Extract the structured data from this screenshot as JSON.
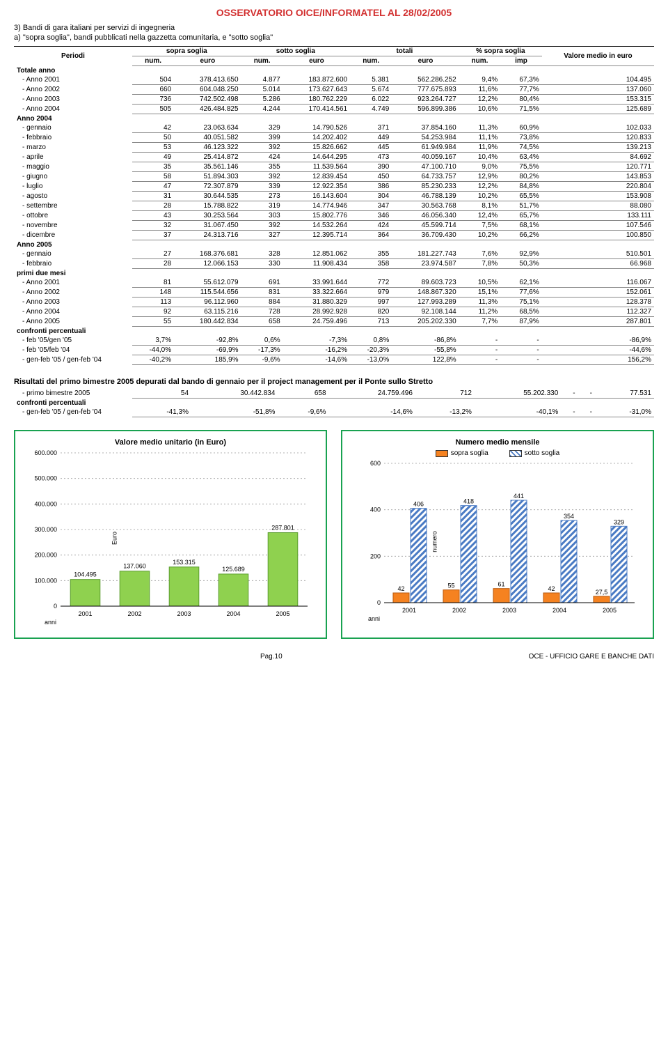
{
  "header": {
    "title": "OSSERVATORIO OICE/INFORMATEL AL 28/02/2005",
    "section": "3) Bandi di gara italiani per servizi di ingegneria",
    "subsection": "a)  \"sopra soglia\", bandi pubblicati nella gazzetta comunitaria, e  \"sotto soglia\""
  },
  "table": {
    "periodi_label": "Periodi",
    "group_headers": [
      "sopra soglia",
      "sotto soglia",
      "totali",
      "% sopra soglia"
    ],
    "valore_label": "Valore medio in euro",
    "sub_headers": [
      "num.",
      "euro",
      "num.",
      "euro",
      "num.",
      "euro",
      "num.",
      "imp"
    ],
    "sections": [
      {
        "title": "Totale anno",
        "rows": [
          {
            "label": " - Anno 2001",
            "c": [
              "504",
              "378.413.650",
              "4.877",
              "183.872.600",
              "5.381",
              "562.286.252",
              "9,4%",
              "67,3%",
              "104.495"
            ]
          },
          {
            "label": " - Anno 2002",
            "c": [
              "660",
              "604.048.250",
              "5.014",
              "173.627.643",
              "5.674",
              "777.675.893",
              "11,6%",
              "77,7%",
              "137.060"
            ]
          },
          {
            "label": " - Anno 2003",
            "c": [
              "736",
              "742.502.498",
              "5.286",
              "180.762.229",
              "6.022",
              "923.264.727",
              "12,2%",
              "80,4%",
              "153.315"
            ]
          },
          {
            "label": " - Anno 2004",
            "c": [
              "505",
              "426.484.825",
              "4.244",
              "170.414.561",
              "4.749",
              "596.899.386",
              "10,6%",
              "71,5%",
              "125.689"
            ]
          }
        ]
      },
      {
        "title": "Anno 2004",
        "rows": [
          {
            "label": " - gennaio",
            "c": [
              "42",
              "23.063.634",
              "329",
              "14.790.526",
              "371",
              "37.854.160",
              "11,3%",
              "60,9%",
              "102.033"
            ]
          },
          {
            "label": " - febbraio",
            "c": [
              "50",
              "40.051.582",
              "399",
              "14.202.402",
              "449",
              "54.253.984",
              "11,1%",
              "73,8%",
              "120.833"
            ]
          },
          {
            "label": " - marzo",
            "c": [
              "53",
              "46.123.322",
              "392",
              "15.826.662",
              "445",
              "61.949.984",
              "11,9%",
              "74,5%",
              "139.213"
            ]
          },
          {
            "label": " - aprile",
            "c": [
              "49",
              "25.414.872",
              "424",
              "14.644.295",
              "473",
              "40.059.167",
              "10,4%",
              "63,4%",
              "84.692"
            ]
          },
          {
            "label": " - maggio",
            "c": [
              "35",
              "35.561.146",
              "355",
              "11.539.564",
              "390",
              "47.100.710",
              "9,0%",
              "75,5%",
              "120.771"
            ]
          },
          {
            "label": " - giugno",
            "c": [
              "58",
              "51.894.303",
              "392",
              "12.839.454",
              "450",
              "64.733.757",
              "12,9%",
              "80,2%",
              "143.853"
            ]
          },
          {
            "label": " - luglio",
            "c": [
              "47",
              "72.307.879",
              "339",
              "12.922.354",
              "386",
              "85.230.233",
              "12,2%",
              "84,8%",
              "220.804"
            ]
          },
          {
            "label": " - agosto",
            "c": [
              "31",
              "30.644.535",
              "273",
              "16.143.604",
              "304",
              "46.788.139",
              "10,2%",
              "65,5%",
              "153.908"
            ]
          },
          {
            "label": " - settembre",
            "c": [
              "28",
              "15.788.822",
              "319",
              "14.774.946",
              "347",
              "30.563.768",
              "8,1%",
              "51,7%",
              "88.080"
            ]
          },
          {
            "label": " - ottobre",
            "c": [
              "43",
              "30.253.564",
              "303",
              "15.802.776",
              "346",
              "46.056.340",
              "12,4%",
              "65,7%",
              "133.111"
            ]
          },
          {
            "label": " - novembre",
            "c": [
              "32",
              "31.067.450",
              "392",
              "14.532.264",
              "424",
              "45.599.714",
              "7,5%",
              "68,1%",
              "107.546"
            ]
          },
          {
            "label": " - dicembre",
            "c": [
              "37",
              "24.313.716",
              "327",
              "12.395.714",
              "364",
              "36.709.430",
              "10,2%",
              "66,2%",
              "100.850"
            ]
          }
        ]
      },
      {
        "title": "Anno 2005",
        "rows": [
          {
            "label": " - gennaio",
            "c": [
              "27",
              "168.376.681",
              "328",
              "12.851.062",
              "355",
              "181.227.743",
              "7,6%",
              "92,9%",
              "510.501"
            ]
          },
          {
            "label": " - febbraio",
            "c": [
              "28",
              "12.066.153",
              "330",
              "11.908.434",
              "358",
              "23.974.587",
              "7,8%",
              "50,3%",
              "66.968"
            ]
          }
        ]
      },
      {
        "title": "primi due mesi",
        "rows": [
          {
            "label": " - Anno 2001",
            "c": [
              "81",
              "55.612.079",
              "691",
              "33.991.644",
              "772",
              "89.603.723",
              "10,5%",
              "62,1%",
              "116.067"
            ]
          },
          {
            "label": " - Anno 2002",
            "c": [
              "148",
              "115.544.656",
              "831",
              "33.322.664",
              "979",
              "148.867.320",
              "15,1%",
              "77,6%",
              "152.061"
            ]
          },
          {
            "label": " - Anno 2003",
            "c": [
              "113",
              "96.112.960",
              "884",
              "31.880.329",
              "997",
              "127.993.289",
              "11,3%",
              "75,1%",
              "128.378"
            ]
          },
          {
            "label": " - Anno 2004",
            "c": [
              "92",
              "63.115.216",
              "728",
              "28.992.928",
              "820",
              "92.108.144",
              "11,2%",
              "68,5%",
              "112.327"
            ]
          },
          {
            "label": " - Anno 2005",
            "c": [
              "55",
              "180.442.834",
              "658",
              "24.759.496",
              "713",
              "205.202.330",
              "7,7%",
              "87,9%",
              "287.801"
            ]
          }
        ]
      },
      {
        "title": "confronti  percentuali",
        "rows": [
          {
            "label": " - feb '05/gen '05",
            "c": [
              "3,7%",
              "-92,8%",
              "0,6%",
              "-7,3%",
              "0,8%",
              "-86,8%",
              "-",
              "-",
              "-86,9%"
            ]
          },
          {
            "label": " - feb '05/feb '04",
            "c": [
              "-44,0%",
              "-69,9%",
              "-17,3%",
              "-16,2%",
              "-20,3%",
              "-55,8%",
              "-",
              "-",
              "-44,6%"
            ]
          },
          {
            "label": " - gen-feb '05 / gen-feb '04",
            "c": [
              "-40,2%",
              "185,9%",
              "-9,6%",
              "-14,6%",
              "-13,0%",
              "122,8%",
              "-",
              "-",
              "156,2%"
            ]
          }
        ]
      }
    ]
  },
  "results": {
    "title": "Risultati del primo bimestre 2005 depurati dal bando di gennaio per il project management per il Ponte sullo Stretto",
    "rows": [
      {
        "label": " - primo bimestre 2005",
        "c": [
          "54",
          "30.442.834",
          "658",
          "24.759.496",
          "712",
          "55.202.330",
          "-",
          "-",
          "77.531"
        ]
      }
    ],
    "confronti_label": "confronti  percentuali",
    "confronti_rows": [
      {
        "label": " - gen-feb '05 / gen-feb '04",
        "c": [
          "-41,3%",
          "-51,8%",
          "-9,6%",
          "-14,6%",
          "-13,2%",
          "-40,1%",
          "-",
          "-",
          "-31,0%"
        ]
      }
    ]
  },
  "chart1": {
    "title": "Valore medio unitario  (in Euro)",
    "type": "bar",
    "categories": [
      "2001",
      "2002",
      "2003",
      "2004",
      "2005"
    ],
    "values": [
      104495,
      137060,
      153315,
      125689,
      287801
    ],
    "value_labels": [
      "104.495",
      "137.060",
      "153.315",
      "125.689",
      "287.801"
    ],
    "bar_color": "#8fd14f",
    "yticks": [
      0,
      100000,
      200000,
      300000,
      400000,
      500000,
      600000
    ],
    "ytick_labels": [
      "0",
      "100.000",
      "200.000",
      "300.000",
      "400.000",
      "500.000",
      "600.000"
    ],
    "x_axis_label": "anni",
    "y_axis_label": "Euro",
    "grid_color": "#999999",
    "background_color": "#ffffff"
  },
  "chart2": {
    "title": "Numero medio mensile",
    "type": "grouped-bar",
    "legend": {
      "sopra": "sopra soglia",
      "sotto": "sotto soglia"
    },
    "categories": [
      "2001",
      "2002",
      "2003",
      "2004",
      "2005"
    ],
    "sopra_values": [
      42,
      55,
      61,
      42,
      27.5
    ],
    "sopra_labels": [
      "42",
      "55",
      "61",
      "42",
      "27,5"
    ],
    "sotto_values": [
      406,
      418,
      441,
      354,
      329
    ],
    "sotto_labels": [
      "406",
      "418",
      "441",
      "354",
      "329"
    ],
    "sopra_color": "#f58220",
    "sotto_pattern_color": "#4a7bc4",
    "yticks": [
      0,
      200,
      400,
      600
    ],
    "ytick_labels": [
      "0",
      "200",
      "400",
      "600"
    ],
    "x_axis_label": "anni",
    "y_axis_label": "numero",
    "grid_color": "#999999",
    "background_color": "#ffffff"
  },
  "footer": {
    "left": "Pag.10",
    "right": "OCE - UFFICIO GARE E BANCHE DATI"
  }
}
